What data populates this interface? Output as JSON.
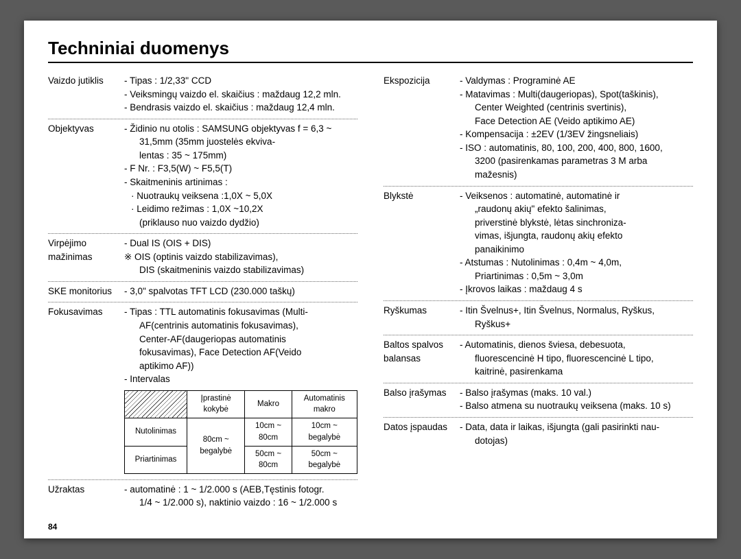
{
  "title": "Techniniai duomenys",
  "pageNumber": "84",
  "left": {
    "r0": {
      "label": "Vaizdo jutiklis",
      "l": [
        "- Tipas : 1/2,33\" CCD",
        "- Veiksmingų vaizdo el. skaičius : maždaug 12,2 mln.",
        "- Bendrasis vaizdo el. skaičius : maždaug 12,4 mln."
      ]
    },
    "r1": {
      "label": "Objektyvas",
      "l": [
        "- Židinio nu otolis : SAMSUNG objektyvas f = 6,3 ~"
      ],
      "s1": [
        "31,5mm (35mm juostelės ekviva-",
        "lentas : 35 ~ 175mm)"
      ],
      "l2": [
        "- F Nr. : F3,5(W) ~ F5,5(T)",
        "- Skaitmeninis artinimas :"
      ],
      "b": [
        "· Nuotraukų veiksena :1,0X ~ 5,0X",
        "· Leidimo režimas : 1,0X ~10,2X"
      ],
      "s2": [
        "(priklauso nuo vaizdo dydžio)"
      ]
    },
    "r2": {
      "label": "Virpėjimo mažinimas",
      "l": [
        "- Dual IS (OIS + DIS)",
        "※ OIS (optinis vaizdo stabilizavimas),"
      ],
      "s": [
        "DIS (skaitmeninis vaizdo stabilizavimas)"
      ]
    },
    "r3": {
      "label": "SKE monitorius",
      "inline": "- 3,0\" spalvotas TFT LCD (230.000 taškų)"
    },
    "r4": {
      "label": "Fokusavimas",
      "l": [
        "- Tipas : TTL automatinis fokusavimas (Multi-"
      ],
      "s": [
        "AF(centrinis automatinis fokusavimas),",
        "Center-AF(daugeriopas automatinis",
        "fokusavimas), Face Detection AF(Veido",
        "aptikimo AF))"
      ],
      "l2": [
        "- Intervalas"
      ]
    },
    "table": {
      "h": [
        "Įprastinė kokybė",
        "Makro",
        "Automatinis makro"
      ],
      "rows": [
        {
          "h": "Nutolinimas",
          "c": [
            "",
            "10cm ~ 80cm",
            "10cm ~ begalybė"
          ],
          "rowspan2first": "80cm ~ begalybė"
        },
        {
          "h": "Priartinimas",
          "c": [
            "",
            "50cm ~  80cm",
            "50cm ~ begalybė"
          ]
        }
      ]
    },
    "r5": {
      "label": "Užraktas",
      "l": [
        "- automatinė : 1 ~ 1/2.000 s (AEB,Tęstinis fotogr."
      ],
      "s": [
        "1/4 ~ 1/2.000 s), naktinio vaizdo : 16 ~ 1/2.000 s"
      ]
    }
  },
  "right": {
    "r0": {
      "label": "Ekspozicija",
      "l": [
        "- Valdymas : Programinė AE",
        "- Matavimas : Multi(daugeriopas), Spot(taškinis),"
      ],
      "s1": [
        "Center Weighted (centrinis svertinis),",
        "Face Detection AE (Veido aptikimo AE)"
      ],
      "l2": [
        "- Kompensacija : ±2EV (1/3EV žingsneliais)",
        "- ISO :  automatinis, 80, 100, 200, 400, 800, 1600,"
      ],
      "s2": [
        "3200 (pasirenkamas parametras 3 M arba",
        "mažesnis)"
      ]
    },
    "r1": {
      "label": "Blykstė",
      "l": [
        "- Veiksenos : automatinė, automatinė ir"
      ],
      "s1": [
        "„raudonų akių\" efekto šalinimas,",
        "priverstinė blykstė, lėtas sinchroniza-",
        "vimas, išjungta, raudonų akių efekto",
        "panaikinimo"
      ],
      "l2": [
        "- Atstumas : Nutolinimas : 0,4m ~ 4,0m,"
      ],
      "s2": [
        "Priartinimas : 0,5m ~ 3,0m"
      ],
      "l3": [
        "- Įkrovos laikas : maždaug 4 s"
      ]
    },
    "r2": {
      "label": "Ryškumas",
      "l": [
        "- Itin Švelnus+, Itin Švelnus, Normalus, Ryškus,"
      ],
      "s": [
        "Ryškus+"
      ]
    },
    "r3": {
      "label": "Baltos spalvos balansas",
      "l": [
        "- Automatinis, dienos šviesa, debesuota,"
      ],
      "s": [
        "fluorescencinė H tipo, fluorescencinė L tipo,",
        "kaitrinė, pasirenkama"
      ]
    },
    "r4": {
      "label": "Balso įrašymas",
      "l": [
        "- Balso įrašymas (maks. 10 val.)",
        "- Balso atmena su nuotraukų veiksena (maks. 10 s)"
      ]
    },
    "r5": {
      "label": "Datos įspaudas",
      "l": [
        "- Data, data ir laikas, išjungta (gali pasirinkti nau-"
      ],
      "s": [
        "dotojas)"
      ]
    }
  }
}
